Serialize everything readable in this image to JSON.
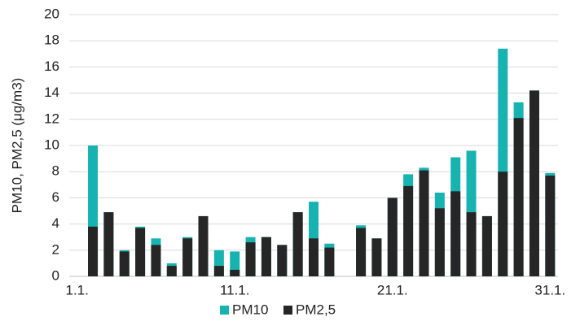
{
  "chart_data": {
    "type": "bar",
    "overlap": true,
    "y_label": "PM10, PM2,5 (μg/m3)",
    "categories": [
      "1.1.",
      null,
      null,
      null,
      null,
      null,
      null,
      null,
      null,
      null,
      "11.1.",
      null,
      null,
      null,
      null,
      null,
      null,
      null,
      null,
      null,
      "21.1.",
      null,
      null,
      null,
      null,
      null,
      null,
      null,
      null,
      null,
      "31.1."
    ],
    "series": [
      {
        "name": "PM10",
        "color": "#17b3b0",
        "values": [
          null,
          10,
          4.9,
          2.0,
          3.8,
          2.9,
          1.0,
          3.0,
          4.6,
          2.0,
          1.9,
          3.0,
          3.0,
          2.4,
          4.9,
          5.7,
          2.5,
          null,
          3.9,
          2.9,
          6.0,
          7.8,
          8.3,
          6.4,
          9.1,
          9.6,
          4.6,
          17.4,
          13.3,
          14.2,
          7.9
        ]
      },
      {
        "name": "PM2,5",
        "color": "#262626",
        "values": [
          null,
          3.8,
          4.9,
          1.9,
          3.7,
          2.4,
          0.8,
          2.9,
          4.6,
          0.8,
          0.5,
          2.6,
          3.0,
          2.4,
          4.9,
          2.9,
          2.2,
          null,
          3.7,
          2.9,
          6.0,
          6.9,
          8.1,
          5.2,
          6.5,
          4.9,
          4.6,
          8.0,
          12.1,
          14.2,
          7.7
        ]
      }
    ],
    "ylim": [
      0,
      20
    ],
    "yticks": [
      0,
      2,
      4,
      6,
      8,
      10,
      12,
      14,
      16,
      18,
      20
    ],
    "grid": true,
    "legend": "bottom"
  }
}
